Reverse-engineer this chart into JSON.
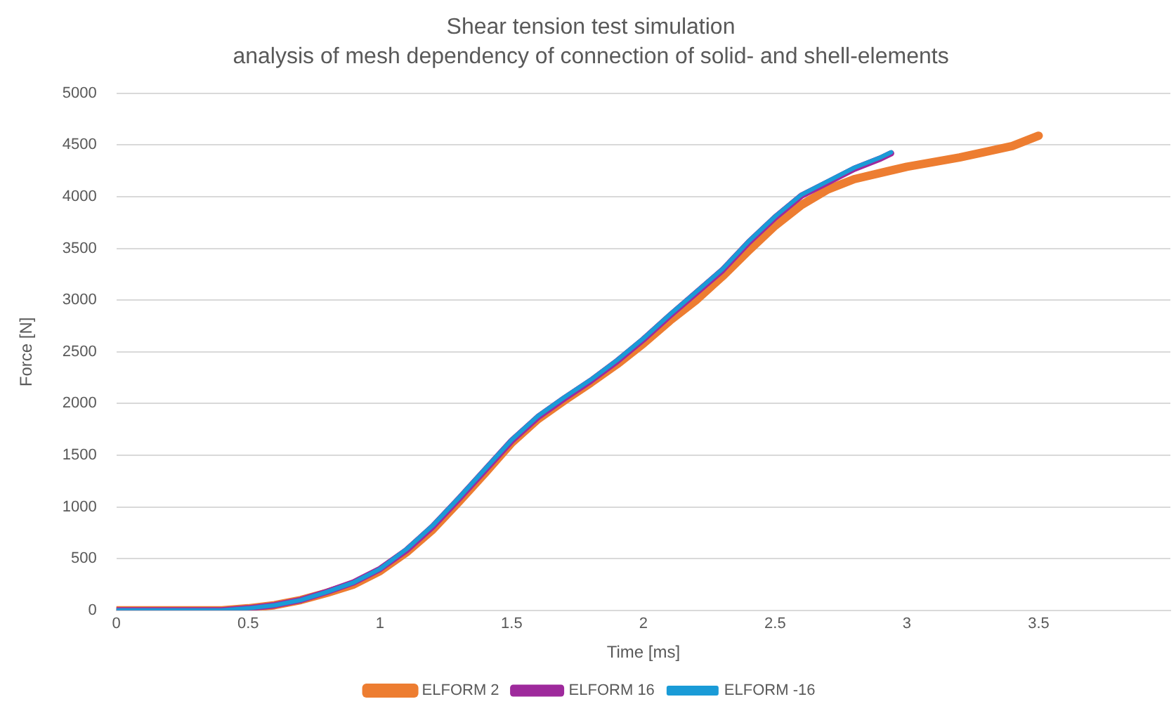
{
  "chart_data": {
    "type": "line",
    "title": "Shear tension test simulation",
    "subtitle": "analysis of mesh dependency of connection of solid- and shell-elements",
    "xlabel": "Time [ms]",
    "ylabel": "Force [N]",
    "xlim": [
      0,
      4
    ],
    "xticks": [
      0,
      0.5,
      1,
      1.5,
      2,
      2.5,
      3,
      3.5
    ],
    "ylim": [
      0,
      5000
    ],
    "yticks": [
      0,
      500,
      1000,
      1500,
      2000,
      2500,
      3000,
      3500,
      4000,
      4500,
      5000
    ],
    "grid": "y",
    "legend": "bottom",
    "marker": "none",
    "line_style": "solid",
    "series": [
      {
        "name": "ELFORM 2",
        "color": "#ed7d31",
        "x": [
          0,
          0.4,
          0.5,
          0.6,
          0.7,
          0.8,
          0.9,
          1.0,
          1.1,
          1.2,
          1.3,
          1.4,
          1.5,
          1.6,
          1.7,
          1.8,
          1.9,
          2.0,
          2.1,
          2.2,
          2.3,
          2.4,
          2.5,
          2.6,
          2.7,
          2.8,
          2.9,
          3.0,
          3.2,
          3.4,
          3.5
        ],
        "values": [
          0,
          0,
          20,
          50,
          100,
          170,
          250,
          380,
          560,
          780,
          1050,
          1330,
          1620,
          1850,
          2030,
          2200,
          2380,
          2580,
          2800,
          3000,
          3230,
          3480,
          3720,
          3920,
          4070,
          4170,
          4230,
          4290,
          4380,
          4490,
          4590
        ]
      },
      {
        "name": "ELFORM 16",
        "color": "#9e2a9c",
        "x": [
          0,
          0.4,
          0.5,
          0.6,
          0.7,
          0.8,
          0.9,
          1.0,
          1.1,
          1.2,
          1.3,
          1.4,
          1.5,
          1.6,
          1.7,
          1.8,
          1.9,
          2.0,
          2.1,
          2.2,
          2.3,
          2.4,
          2.5,
          2.6,
          2.7,
          2.8,
          2.9,
          2.94
        ],
        "values": [
          0,
          0,
          20,
          50,
          100,
          180,
          270,
          400,
          580,
          810,
          1080,
          1360,
          1640,
          1870,
          2050,
          2220,
          2410,
          2620,
          2850,
          3070,
          3290,
          3560,
          3800,
          4010,
          4140,
          4270,
          4370,
          4420
        ]
      },
      {
        "name": "ELFORM -16",
        "color": "#1a9bd7",
        "x": [
          0,
          0.4,
          0.5,
          0.6,
          0.7,
          0.8,
          0.9,
          1.0,
          1.1,
          1.2,
          1.3,
          1.4,
          1.5,
          1.6,
          1.7,
          1.8,
          1.9,
          2.0,
          2.1,
          2.2,
          2.3,
          2.4,
          2.5,
          2.6,
          2.7,
          2.8,
          2.9,
          2.94
        ],
        "values": [
          0,
          0,
          20,
          50,
          100,
          180,
          270,
          400,
          590,
          820,
          1090,
          1370,
          1650,
          1880,
          2060,
          2230,
          2420,
          2630,
          2860,
          3080,
          3300,
          3570,
          3810,
          4020,
          4150,
          4280,
          4380,
          4430
        ]
      }
    ]
  }
}
